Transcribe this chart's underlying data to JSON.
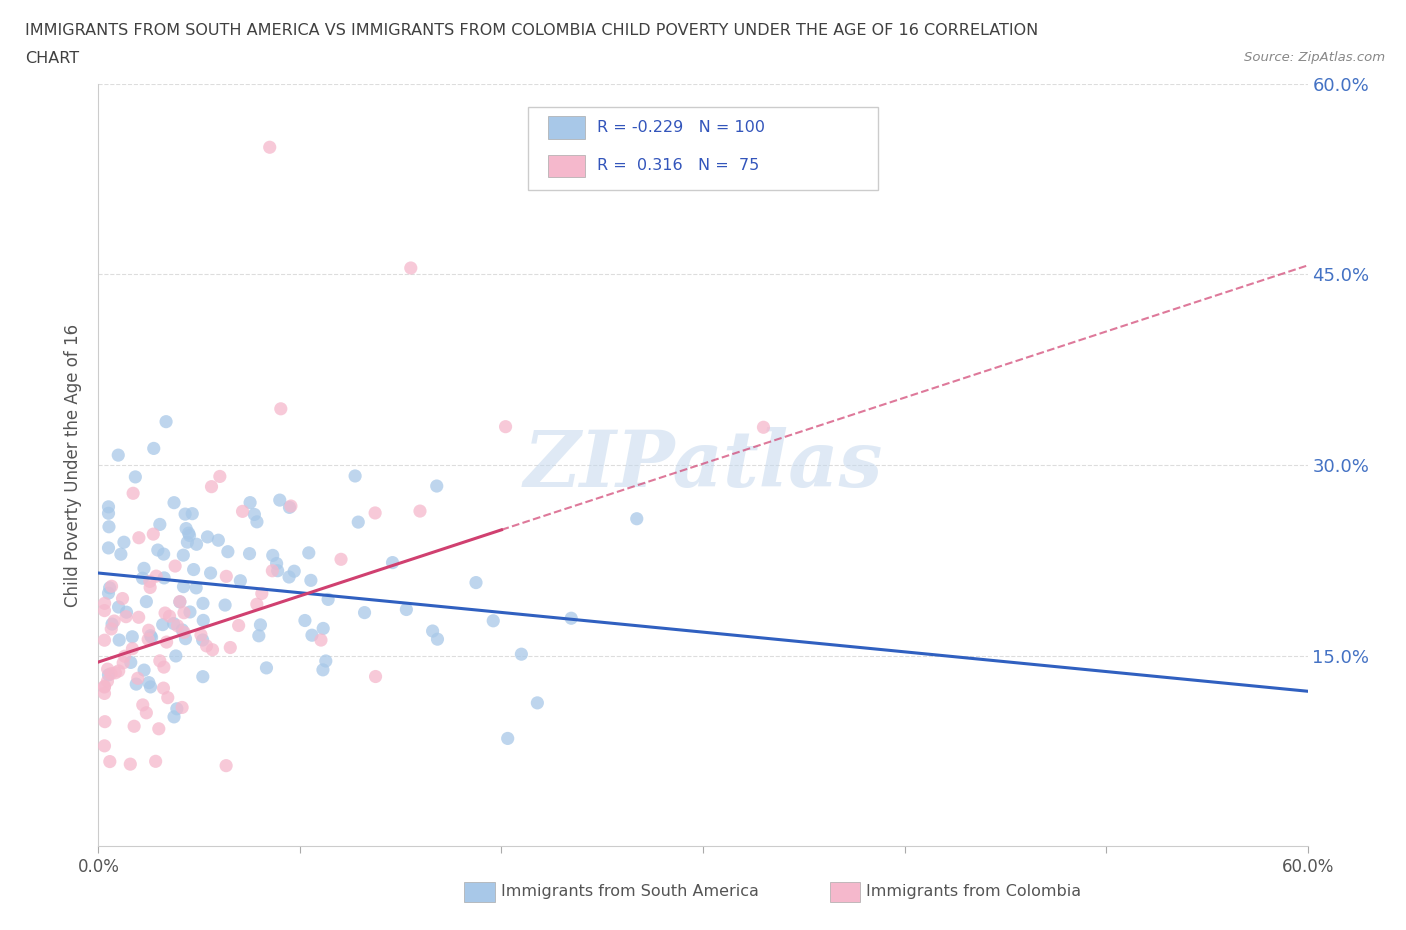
{
  "title_line1": "IMMIGRANTS FROM SOUTH AMERICA VS IMMIGRANTS FROM COLOMBIA CHILD POVERTY UNDER THE AGE OF 16 CORRELATION",
  "title_line2": "CHART",
  "source": "Source: ZipAtlas.com",
  "ylabel": "Child Poverty Under the Age of 16",
  "xmin": 0.0,
  "xmax": 0.6,
  "ymin": 0.0,
  "ymax": 0.6,
  "yticks": [
    0.15,
    0.3,
    0.45,
    0.6
  ],
  "ytick_labels": [
    "15.0%",
    "30.0%",
    "45.0%",
    "60.0%"
  ],
  "xticks": [
    0.0,
    0.1,
    0.2,
    0.3,
    0.4,
    0.5,
    0.6
  ],
  "xtick_labels": [
    "0.0%",
    "",
    "",
    "",
    "",
    "",
    "60.0%"
  ],
  "series1_color": "#a8c8e8",
  "series2_color": "#f5b8cc",
  "line1_color": "#3060c0",
  "line2_color": "#d04070",
  "line1_style": "-",
  "line2_style": "--",
  "R1": -0.229,
  "N1": 100,
  "R2": 0.316,
  "N2": 75,
  "legend1": "Immigrants from South America",
  "legend2": "Immigrants from Colombia",
  "watermark": "ZIPatlas",
  "background_color": "#ffffff",
  "grid_color": "#dddddd",
  "title_color": "#404040",
  "source_color": "#888888",
  "tick_label_color_right": "#4472c4",
  "line1_intercept": 0.215,
  "line1_slope": -0.155,
  "line2_intercept": 0.145,
  "line2_slope": 0.52
}
